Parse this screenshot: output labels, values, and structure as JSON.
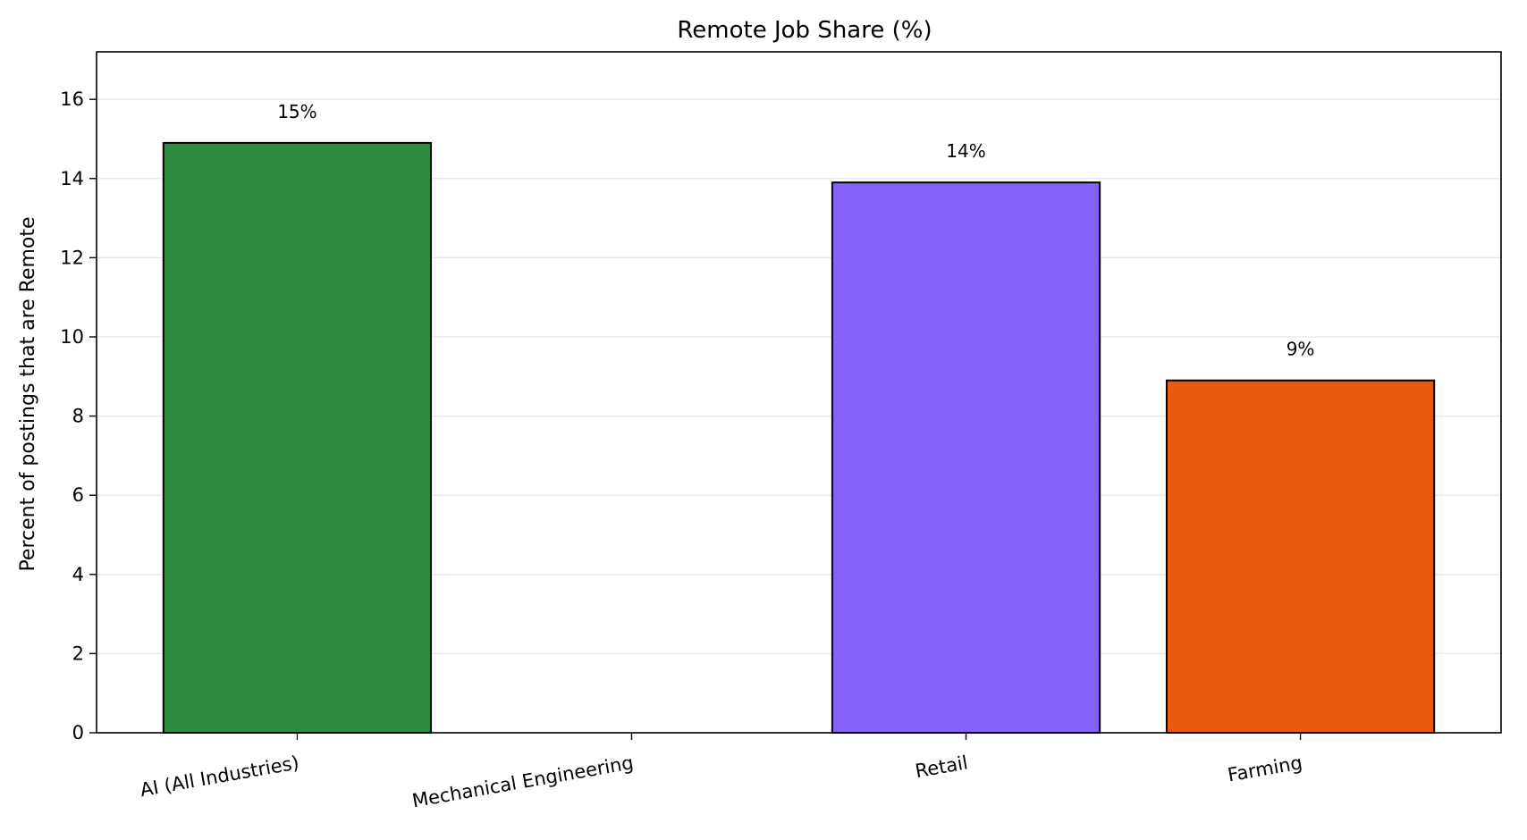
{
  "chart_data": {
    "type": "bar",
    "title": "Remote Job Share (%)",
    "xlabel": "",
    "ylabel": "Percent of postings that are Remote",
    "categories": [
      "AI (All Industries)",
      "Mechanical Engineering",
      "Retail",
      "Farming"
    ],
    "values": [
      14.9,
      0,
      13.9,
      8.9
    ],
    "value_labels": [
      "15%",
      "",
      "14%",
      "9%"
    ],
    "colors": [
      "#2e8b40",
      "#ffffff",
      "#8562f7",
      "#e85b0e"
    ],
    "ylim": [
      0,
      17.2
    ],
    "yticks": [
      0,
      2,
      4,
      6,
      8,
      10,
      12,
      14,
      16
    ],
    "grid": "horizontal"
  }
}
